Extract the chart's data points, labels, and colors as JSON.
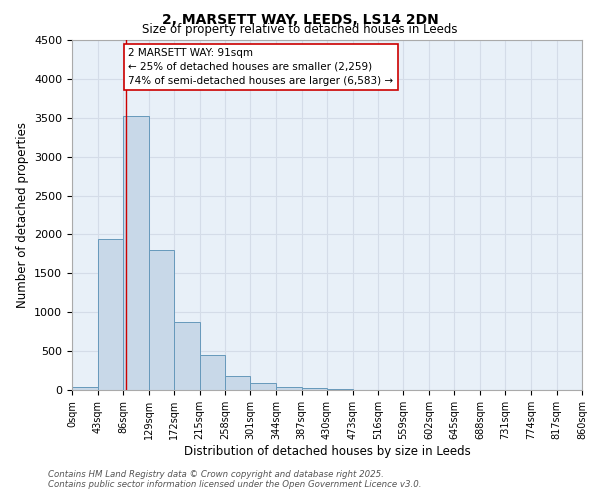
{
  "title": "2, MARSETT WAY, LEEDS, LS14 2DN",
  "subtitle": "Size of property relative to detached houses in Leeds",
  "xlabel": "Distribution of detached houses by size in Leeds",
  "ylabel": "Number of detached properties",
  "bar_color": "#c8d8e8",
  "bar_edge_color": "#6699bb",
  "background_color": "#e8f0f8",
  "grid_color": "#d0d8e4",
  "bin_labels": [
    "0sqm",
    "43sqm",
    "86sqm",
    "129sqm",
    "172sqm",
    "215sqm",
    "258sqm",
    "301sqm",
    "344sqm",
    "387sqm",
    "430sqm",
    "473sqm",
    "516sqm",
    "559sqm",
    "602sqm",
    "645sqm",
    "688sqm",
    "731sqm",
    "774sqm",
    "817sqm",
    "860sqm"
  ],
  "bar_heights": [
    40,
    1940,
    3520,
    1800,
    870,
    455,
    175,
    95,
    45,
    20,
    8,
    3,
    1,
    0,
    0,
    0,
    0,
    0,
    0,
    0
  ],
  "ylim": [
    0,
    4500
  ],
  "yticks": [
    0,
    500,
    1000,
    1500,
    2000,
    2500,
    3000,
    3500,
    4000,
    4500
  ],
  "property_line_x": 91,
  "bin_width": 43,
  "annotation_text_line1": "2 MARSETT WAY: 91sqm",
  "annotation_text_line2": "← 25% of detached houses are smaller (2,259)",
  "annotation_text_line3": "74% of semi-detached houses are larger (6,583) →",
  "footnote1": "Contains HM Land Registry data © Crown copyright and database right 2025.",
  "footnote2": "Contains public sector information licensed under the Open Government Licence v3.0."
}
